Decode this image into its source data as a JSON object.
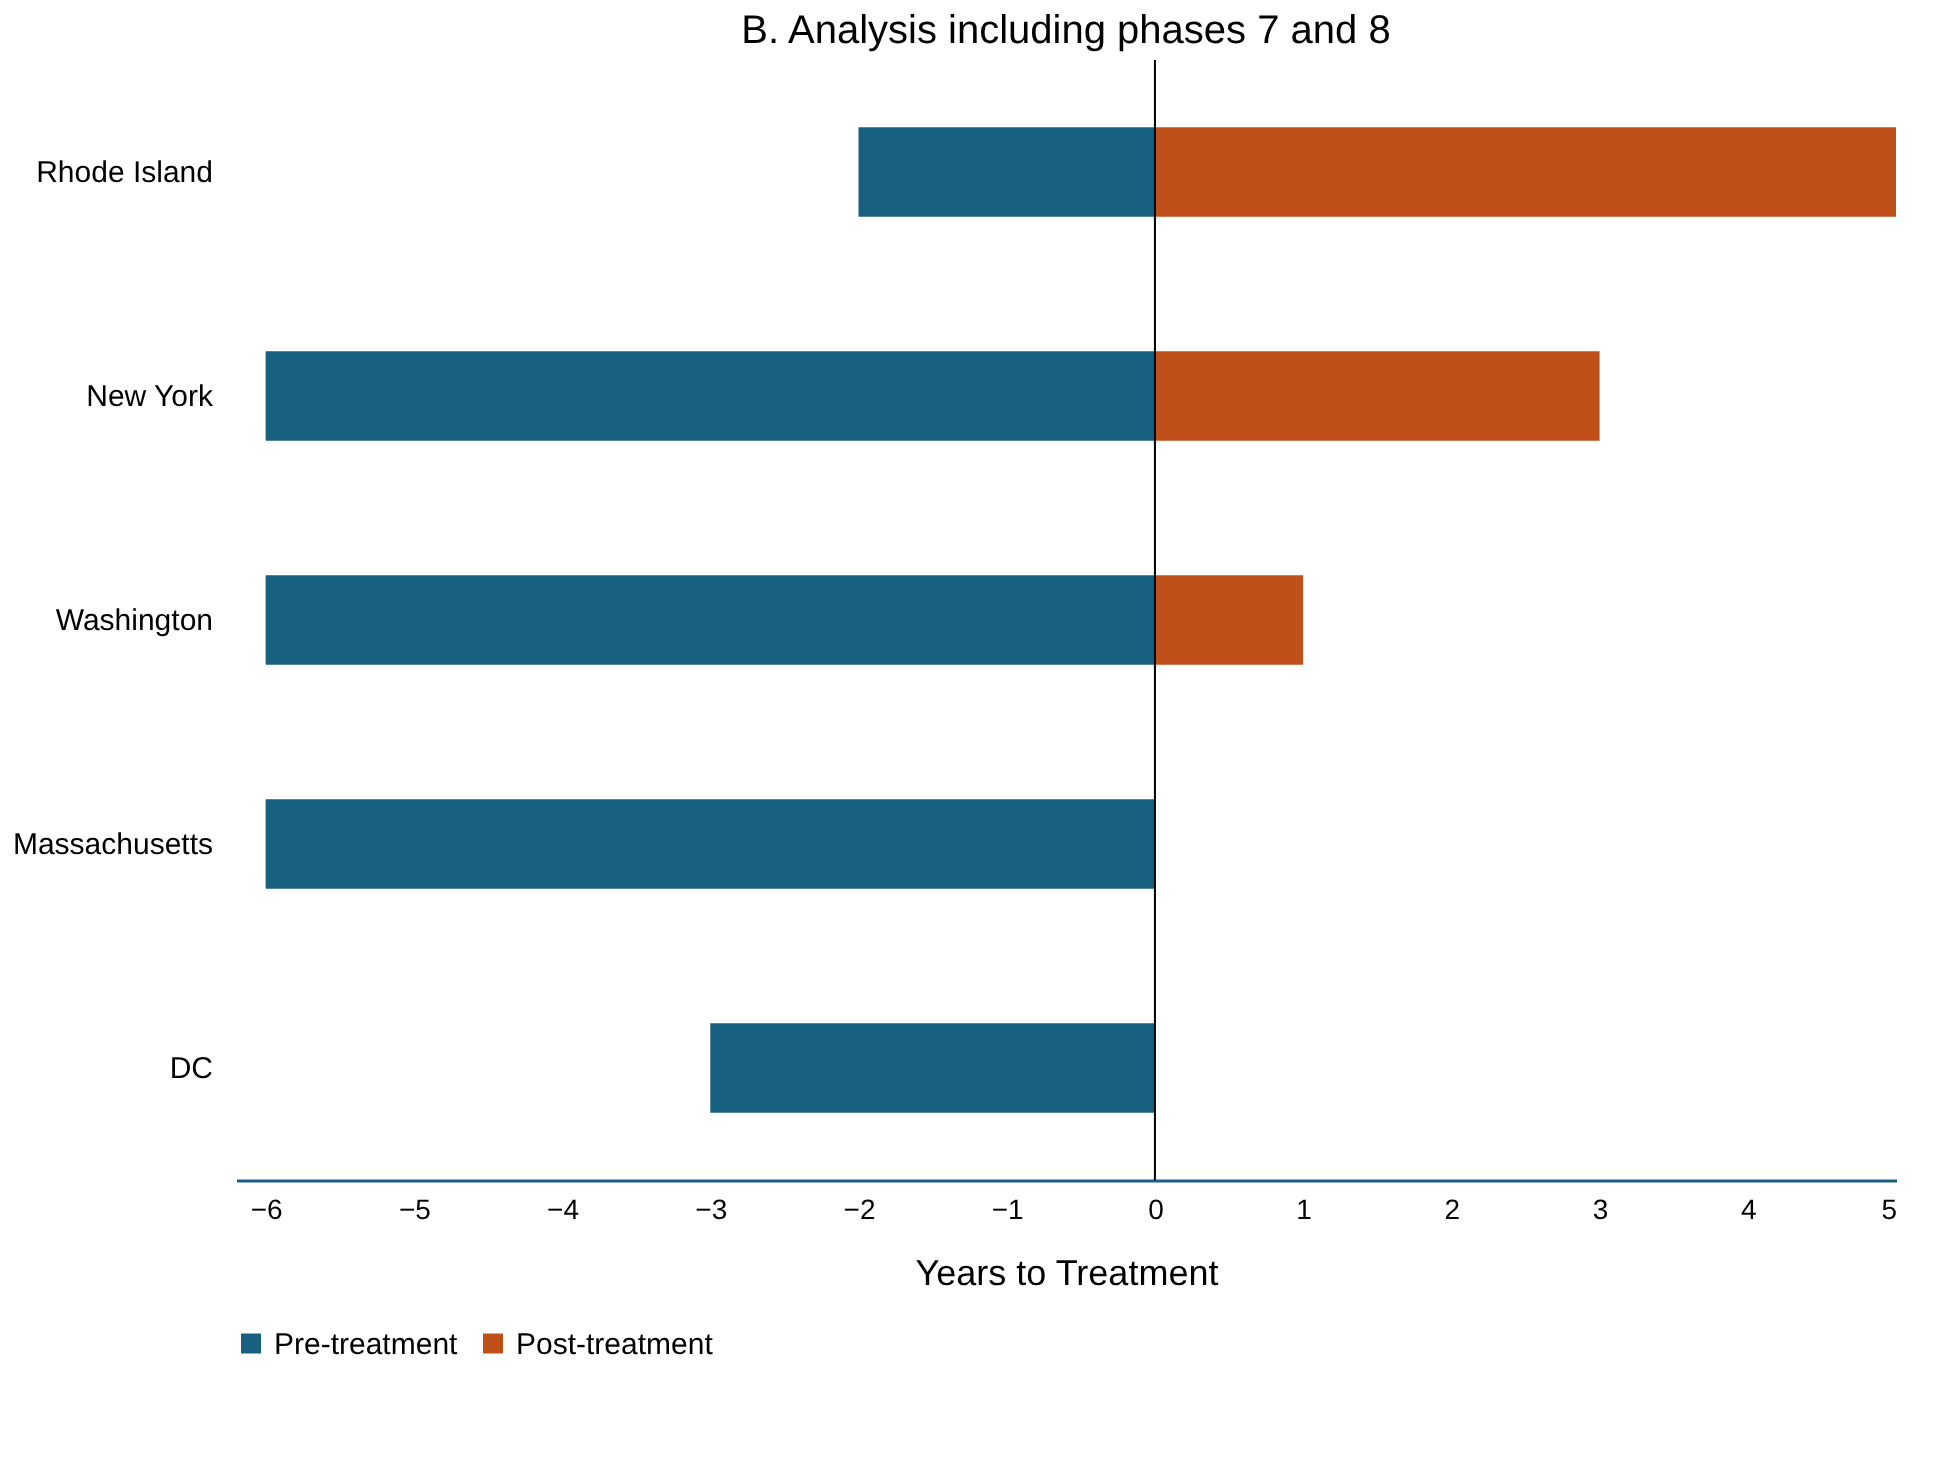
{
  "chart_data": {
    "type": "bar",
    "orientation": "horizontal",
    "title": "B. Analysis including phases 7 and 8",
    "xlabel": "Years to Treatment",
    "categories": [
      "Rhode Island",
      "New York",
      "Washington",
      "Massachusetts",
      "DC"
    ],
    "series": [
      {
        "name": "Pre-treatment",
        "color": "#17607f",
        "values": [
          -2,
          -6,
          -6,
          -6,
          -3
        ]
      },
      {
        "name": "Post-treatment",
        "color": "#c0501a",
        "values": [
          5,
          3,
          1,
          null,
          null
        ]
      }
    ],
    "xlim": [
      -6.2,
      5
    ],
    "xticks": [
      -6,
      -5,
      -4,
      -3,
      -2,
      -1,
      0,
      1,
      2,
      3,
      4,
      5
    ],
    "ref_lines": [
      {
        "axis": "x",
        "value": 0,
        "color": "#000000"
      }
    ],
    "stacked": true,
    "grid": false,
    "legend": "bottom"
  }
}
